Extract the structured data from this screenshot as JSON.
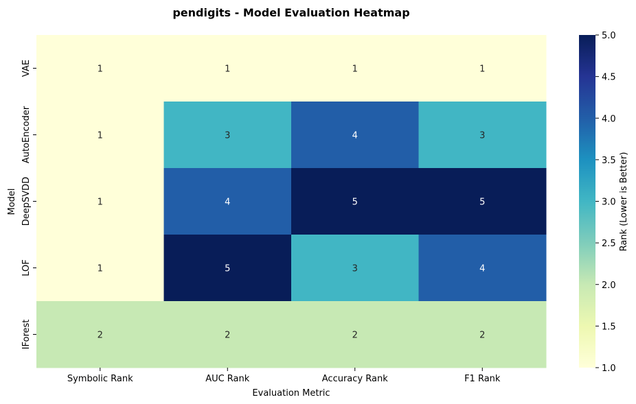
{
  "chart_data": {
    "type": "heatmap",
    "title": "pendigits - Model Evaluation Heatmap",
    "xlabel": "Evaluation Metric",
    "ylabel": "Model",
    "columns": [
      "Symbolic Rank",
      "AUC Rank",
      "Accuracy Rank",
      "F1 Rank"
    ],
    "rows": [
      "VAE",
      "AutoEncoder",
      "DeepSVDD",
      "LOF",
      "IForest"
    ],
    "values": [
      [
        1,
        1,
        1,
        1
      ],
      [
        1,
        3,
        4,
        3
      ],
      [
        1,
        4,
        5,
        5
      ],
      [
        1,
        5,
        3,
        4
      ],
      [
        2,
        2,
        2,
        2
      ]
    ],
    "annotations": true,
    "colormap": "YlGnBu",
    "colorbar": {
      "label": "Rank (Lower is Better)",
      "min": 1.0,
      "max": 5.0,
      "ticks": [
        "1.0",
        "1.5",
        "2.0",
        "2.5",
        "3.0",
        "3.5",
        "4.0",
        "4.5",
        "5.0"
      ],
      "tick_values": [
        1.0,
        1.5,
        2.0,
        2.5,
        3.0,
        3.5,
        4.0,
        4.5,
        5.0
      ]
    },
    "grid": false
  }
}
